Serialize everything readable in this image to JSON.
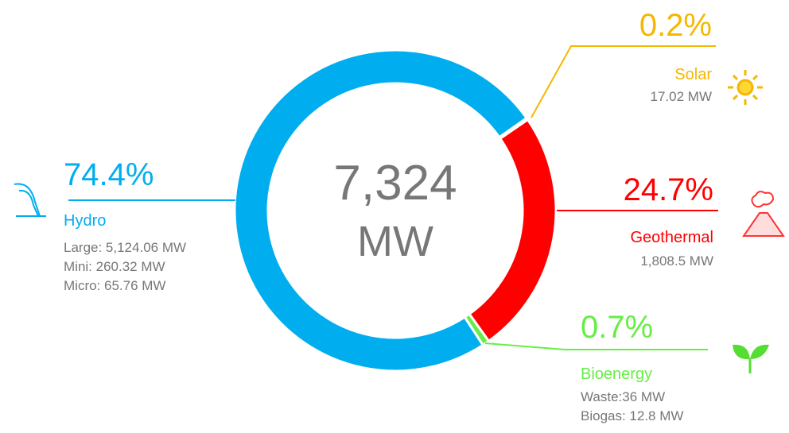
{
  "chart_data": {
    "type": "donut",
    "center_label": [
      "7,324",
      "MW"
    ],
    "categories": [
      "Solar",
      "Geothermal",
      "Bioenergy",
      "Hydro"
    ],
    "values": [
      0.2,
      24.7,
      0.7,
      74.4
    ],
    "value_labels": [
      "0.2%",
      "24.7%",
      "0.7%",
      "74.4%"
    ],
    "colors": [
      "#f5b700",
      "#ff0000",
      "#66ee44",
      "#00aeef"
    ],
    "details": [
      [
        "17.02 MW"
      ],
      [
        "1,808.5 MW"
      ],
      [
        "Waste:36 MW",
        "Biogas: 12.8 MW"
      ],
      [
        "Large: 5,124.06 MW",
        "Mini: 260.32 MW",
        "Micro: 65.76 MW"
      ]
    ]
  }
}
